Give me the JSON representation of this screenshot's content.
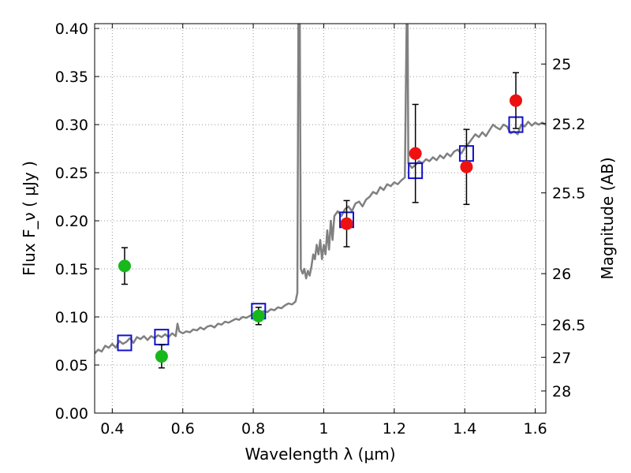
{
  "chart_data": {
    "type": "scatter",
    "xlabel": "Wavelength  λ (μm)",
    "ylabel": "Flux  F_ν  ( μJy )",
    "y2label": "Magnitude (AB)",
    "xlim": [
      0.35,
      1.63
    ],
    "ylim": [
      0.0,
      0.405
    ],
    "grid": true,
    "x_ticks": [
      0.4,
      0.6,
      0.8,
      1.0,
      1.2,
      1.4,
      1.6
    ],
    "x_tick_labels": [
      "0.4",
      "0.6",
      "0.8",
      "1",
      "1.2",
      "1.4",
      "1.6"
    ],
    "y_ticks": [
      0.0,
      0.05,
      0.1,
      0.15,
      0.2,
      0.25,
      0.3,
      0.35,
      0.4
    ],
    "y_tick_labels": [
      "0.00",
      "0.05",
      "0.10",
      "0.15",
      "0.20",
      "0.25",
      "0.30",
      "0.35",
      "0.40"
    ],
    "y2_ticks": [
      {
        "flux": 0.363,
        "label": "25"
      },
      {
        "flux": 0.301,
        "label": "25.2"
      },
      {
        "flux": 0.229,
        "label": "25.5"
      },
      {
        "flux": 0.145,
        "label": "26"
      },
      {
        "flux": 0.092,
        "label": "26.5"
      },
      {
        "flux": 0.058,
        "label": "27"
      },
      {
        "flux": 0.023,
        "label": "28"
      }
    ],
    "colors": {
      "model": "#808080",
      "green_points": "#16b81a",
      "red_points": "#ee1111",
      "squares": "#1010cc",
      "errorbars": "#000000",
      "grid": "#999999"
    },
    "series": [
      {
        "style": "green_points",
        "points": [
          {
            "x": 0.435,
            "y": 0.153,
            "err": 0.019
          },
          {
            "x": 0.54,
            "y": 0.059,
            "err": 0.012
          },
          {
            "x": 0.815,
            "y": 0.101,
            "err": 0.009
          }
        ]
      },
      {
        "style": "red_points",
        "points": [
          {
            "x": 1.065,
            "y": 0.197,
            "err": 0.024
          },
          {
            "x": 1.26,
            "y": 0.27,
            "err": 0.051
          },
          {
            "x": 1.405,
            "y": 0.256,
            "err": 0.039
          },
          {
            "x": 1.545,
            "y": 0.325,
            "err": 0.029
          }
        ]
      },
      {
        "style": "squares",
        "points": [
          {
            "x": 0.435,
            "y": 0.073
          },
          {
            "x": 0.54,
            "y": 0.079
          },
          {
            "x": 0.815,
            "y": 0.106
          },
          {
            "x": 1.065,
            "y": 0.201
          },
          {
            "x": 1.26,
            "y": 0.252
          },
          {
            "x": 1.405,
            "y": 0.27
          },
          {
            "x": 1.545,
            "y": 0.3
          }
        ]
      },
      {
        "style": "model",
        "line": [
          [
            0.35,
            0.062
          ],
          [
            0.36,
            0.066
          ],
          [
            0.37,
            0.064
          ],
          [
            0.38,
            0.07
          ],
          [
            0.39,
            0.068
          ],
          [
            0.4,
            0.072
          ],
          [
            0.41,
            0.068
          ],
          [
            0.42,
            0.075
          ],
          [
            0.43,
            0.072
          ],
          [
            0.44,
            0.074
          ],
          [
            0.45,
            0.078
          ],
          [
            0.46,
            0.073
          ],
          [
            0.47,
            0.079
          ],
          [
            0.48,
            0.077
          ],
          [
            0.49,
            0.08
          ],
          [
            0.5,
            0.076
          ],
          [
            0.51,
            0.08
          ],
          [
            0.52,
            0.078
          ],
          [
            0.53,
            0.081
          ],
          [
            0.54,
            0.079
          ],
          [
            0.55,
            0.082
          ],
          [
            0.56,
            0.079
          ],
          [
            0.57,
            0.083
          ],
          [
            0.58,
            0.08
          ],
          [
            0.585,
            0.093
          ],
          [
            0.59,
            0.085
          ],
          [
            0.6,
            0.083
          ],
          [
            0.61,
            0.085
          ],
          [
            0.62,
            0.084
          ],
          [
            0.63,
            0.087
          ],
          [
            0.64,
            0.086
          ],
          [
            0.65,
            0.089
          ],
          [
            0.66,
            0.087
          ],
          [
            0.67,
            0.09
          ],
          [
            0.68,
            0.091
          ],
          [
            0.69,
            0.089
          ],
          [
            0.7,
            0.093
          ],
          [
            0.71,
            0.092
          ],
          [
            0.72,
            0.095
          ],
          [
            0.73,
            0.094
          ],
          [
            0.74,
            0.096
          ],
          [
            0.75,
            0.098
          ],
          [
            0.76,
            0.097
          ],
          [
            0.77,
            0.1
          ],
          [
            0.78,
            0.099
          ],
          [
            0.79,
            0.101
          ],
          [
            0.8,
            0.103
          ],
          [
            0.81,
            0.102
          ],
          [
            0.82,
            0.104
          ],
          [
            0.83,
            0.106
          ],
          [
            0.84,
            0.105
          ],
          [
            0.85,
            0.108
          ],
          [
            0.86,
            0.107
          ],
          [
            0.87,
            0.11
          ],
          [
            0.88,
            0.109
          ],
          [
            0.89,
            0.112
          ],
          [
            0.9,
            0.114
          ],
          [
            0.91,
            0.113
          ],
          [
            0.92,
            0.116
          ],
          [
            0.925,
            0.125
          ],
          [
            0.928,
            0.405
          ],
          [
            0.932,
            0.405
          ],
          [
            0.935,
            0.15
          ],
          [
            0.94,
            0.145
          ],
          [
            0.945,
            0.15
          ],
          [
            0.95,
            0.14
          ],
          [
            0.955,
            0.148
          ],
          [
            0.96,
            0.143
          ],
          [
            0.965,
            0.152
          ],
          [
            0.97,
            0.165
          ],
          [
            0.975,
            0.16
          ],
          [
            0.98,
            0.175
          ],
          [
            0.985,
            0.165
          ],
          [
            0.99,
            0.18
          ],
          [
            0.995,
            0.16
          ],
          [
            1.0,
            0.175
          ],
          [
            1.005,
            0.165
          ],
          [
            1.01,
            0.19
          ],
          [
            1.015,
            0.17
          ],
          [
            1.02,
            0.2
          ],
          [
            1.025,
            0.18
          ],
          [
            1.03,
            0.205
          ],
          [
            1.04,
            0.21
          ],
          [
            1.05,
            0.205
          ],
          [
            1.06,
            0.212
          ],
          [
            1.07,
            0.215
          ],
          [
            1.08,
            0.21
          ],
          [
            1.09,
            0.218
          ],
          [
            1.1,
            0.22
          ],
          [
            1.11,
            0.215
          ],
          [
            1.12,
            0.222
          ],
          [
            1.13,
            0.225
          ],
          [
            1.14,
            0.23
          ],
          [
            1.15,
            0.228
          ],
          [
            1.16,
            0.235
          ],
          [
            1.17,
            0.232
          ],
          [
            1.18,
            0.238
          ],
          [
            1.19,
            0.236
          ],
          [
            1.2,
            0.24
          ],
          [
            1.21,
            0.238
          ],
          [
            1.22,
            0.242
          ],
          [
            1.23,
            0.245
          ],
          [
            1.235,
            0.405
          ],
          [
            1.238,
            0.405
          ],
          [
            1.24,
            0.26
          ],
          [
            1.25,
            0.255
          ],
          [
            1.26,
            0.258
          ],
          [
            1.27,
            0.262
          ],
          [
            1.28,
            0.26
          ],
          [
            1.29,
            0.264
          ],
          [
            1.3,
            0.262
          ],
          [
            1.31,
            0.266
          ],
          [
            1.32,
            0.263
          ],
          [
            1.33,
            0.268
          ],
          [
            1.34,
            0.265
          ],
          [
            1.35,
            0.27
          ],
          [
            1.36,
            0.267
          ],
          [
            1.37,
            0.272
          ],
          [
            1.38,
            0.274
          ],
          [
            1.39,
            0.27
          ],
          [
            1.4,
            0.276
          ],
          [
            1.41,
            0.28
          ],
          [
            1.42,
            0.285
          ],
          [
            1.43,
            0.29
          ],
          [
            1.44,
            0.287
          ],
          [
            1.45,
            0.292
          ],
          [
            1.46,
            0.288
          ],
          [
            1.47,
            0.294
          ],
          [
            1.48,
            0.3
          ],
          [
            1.49,
            0.297
          ],
          [
            1.5,
            0.295
          ],
          [
            1.51,
            0.3
          ],
          [
            1.52,
            0.298
          ],
          [
            1.53,
            0.291
          ],
          [
            1.54,
            0.293
          ],
          [
            1.55,
            0.29
          ],
          [
            1.56,
            0.3
          ],
          [
            1.57,
            0.298
          ],
          [
            1.58,
            0.303
          ],
          [
            1.59,
            0.299
          ],
          [
            1.6,
            0.302
          ],
          [
            1.61,
            0.3
          ],
          [
            1.62,
            0.302
          ],
          [
            1.63,
            0.3
          ]
        ]
      }
    ]
  }
}
